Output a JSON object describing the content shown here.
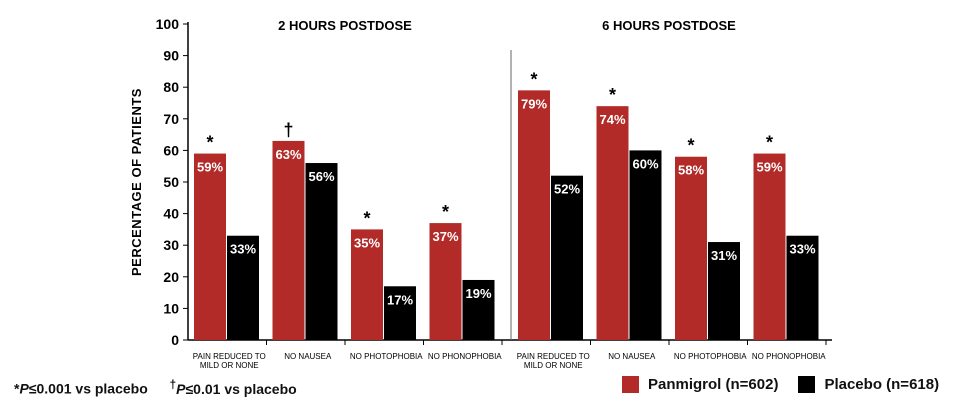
{
  "chart_data": {
    "type": "bar",
    "ylabel": "PERCENTAGE OF PATIENTS",
    "ylim": [
      0,
      100
    ],
    "yticks": [
      0,
      10,
      20,
      30,
      40,
      50,
      60,
      70,
      80,
      90,
      100
    ],
    "panels": [
      {
        "title": "2 HOURS POSTDOSE",
        "categories": [
          "PAIN REDUCED TO MILD OR NONE",
          "NO NAUSEA",
          "NO PHOTOPHOBIA",
          "NO PHONOPHOBIA"
        ],
        "series": [
          {
            "name": "Panmigrol (n=602)",
            "values": [
              59,
              63,
              35,
              37
            ],
            "labels": [
              "59%",
              "63%",
              "35%",
              "37%"
            ]
          },
          {
            "name": "Placebo (n=618)",
            "values": [
              33,
              56,
              17,
              19
            ],
            "labels": [
              "33%",
              "56%",
              "17%",
              "19%"
            ]
          }
        ],
        "markers": [
          "*",
          "†",
          "*",
          "*"
        ]
      },
      {
        "title": "6 HOURS POSTDOSE",
        "categories": [
          "PAIN REDUCED TO MILD OR NONE",
          "NO NAUSEA",
          "NO PHOTOPHOBIA",
          "NO PHONOPHOBIA"
        ],
        "series": [
          {
            "name": "Panmigrol (n=602)",
            "values": [
              79,
              74,
              58,
              59
            ],
            "labels": [
              "79%",
              "74%",
              "58%",
              "59%"
            ]
          },
          {
            "name": "Placebo (n=618)",
            "values": [
              52,
              60,
              31,
              33
            ],
            "labels": [
              "52%",
              "60%",
              "31%",
              "33%"
            ]
          }
        ],
        "markers": [
          "*",
          "*",
          "*",
          "*"
        ]
      }
    ],
    "legend": {
      "position": "bottom-right",
      "items": [
        {
          "label": "Panmigrol (n=602)",
          "color": "#b22b29"
        },
        {
          "label": "Placebo (n=618)",
          "color": "#000000"
        }
      ]
    },
    "colors": {
      "panmigrol": "#b22b29",
      "placebo": "#000000"
    }
  },
  "footnotes": {
    "star_mark": "*",
    "star_p": "P",
    "star_text": "≤0.001 vs placebo",
    "dagger_mark": "†",
    "dagger_p": "P",
    "dagger_text": "≤0.01 vs placebo"
  }
}
